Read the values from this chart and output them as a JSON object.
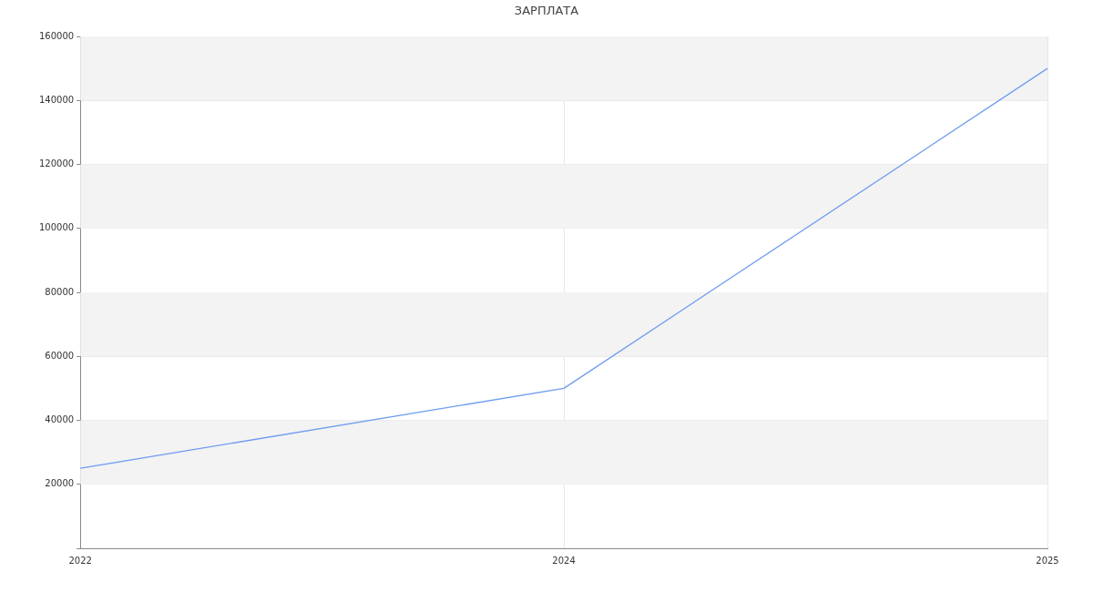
{
  "chart_data": {
    "type": "line",
    "title": "ЗАРПЛАТА",
    "categories": [
      "2022",
      "2024",
      "2025"
    ],
    "series": [
      {
        "color": "#6f9cf0",
        "values": [
          25000,
          50000,
          150000
        ]
      }
    ],
    "ylim": [
      0,
      160000
    ],
    "yticks": [
      {
        "value": 0,
        "label": null
      },
      20000,
      40000,
      60000,
      80000,
      100000,
      120000,
      140000,
      160000
    ],
    "grid": true,
    "legend": false,
    "marker": "none",
    "line_style": "solid"
  }
}
